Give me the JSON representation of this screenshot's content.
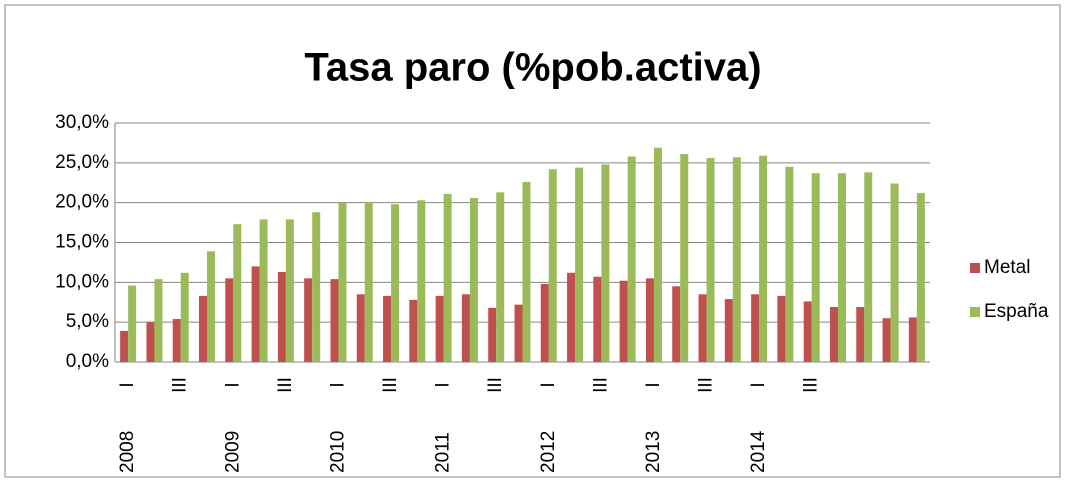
{
  "chart_data": {
    "type": "bar",
    "title": "Tasa paro (%pob.activa)",
    "categories": [
      "I",
      null,
      "III",
      null,
      "I",
      null,
      "III",
      null,
      "I",
      null,
      "III",
      null,
      "I",
      null,
      "III",
      null,
      "I",
      null,
      "III",
      null,
      "I",
      null,
      "III",
      null,
      "I",
      null,
      "III",
      null,
      null,
      null,
      null
    ],
    "years": [
      "2008",
      null,
      null,
      null,
      "2009",
      null,
      null,
      null,
      "2010",
      null,
      null,
      null,
      "2011",
      null,
      null,
      null,
      "2012",
      null,
      null,
      null,
      "2013",
      null,
      null,
      null,
      "2014",
      null,
      null,
      null,
      null,
      null,
      null
    ],
    "series": [
      {
        "name": "Metal",
        "color": "#c0504d",
        "values": [
          3.9,
          5.0,
          5.4,
          8.3,
          10.5,
          12.0,
          11.3,
          10.5,
          10.4,
          8.5,
          8.3,
          7.8,
          8.3,
          8.5,
          6.8,
          7.2,
          9.8,
          11.2,
          10.7,
          10.2,
          10.5,
          9.5,
          8.5,
          7.9,
          8.5,
          8.3,
          7.6,
          6.9,
          6.9,
          5.5,
          5.6
        ]
      },
      {
        "name": "España",
        "color": "#9bbb59",
        "values": [
          9.6,
          10.4,
          11.2,
          13.9,
          17.3,
          17.9,
          17.9,
          18.8,
          20.0,
          20.1,
          19.8,
          20.3,
          21.1,
          20.6,
          21.3,
          22.6,
          24.2,
          24.4,
          24.8,
          25.8,
          26.9,
          26.1,
          25.6,
          25.7,
          25.9,
          24.5,
          23.7,
          23.7,
          23.8,
          22.4,
          21.2
        ]
      }
    ],
    "ylim": [
      0,
      30
    ],
    "yticks": [
      {
        "value": 0,
        "label": "0,0%"
      },
      {
        "value": 5,
        "label": "5,0%"
      },
      {
        "value": 10,
        "label": "10,0%"
      },
      {
        "value": 15,
        "label": "15,0%"
      },
      {
        "value": 20,
        "label": "20,0%"
      },
      {
        "value": 25,
        "label": "25,0%"
      },
      {
        "value": 30,
        "label": "30,0%"
      }
    ],
    "grid": true,
    "legend": "right"
  }
}
